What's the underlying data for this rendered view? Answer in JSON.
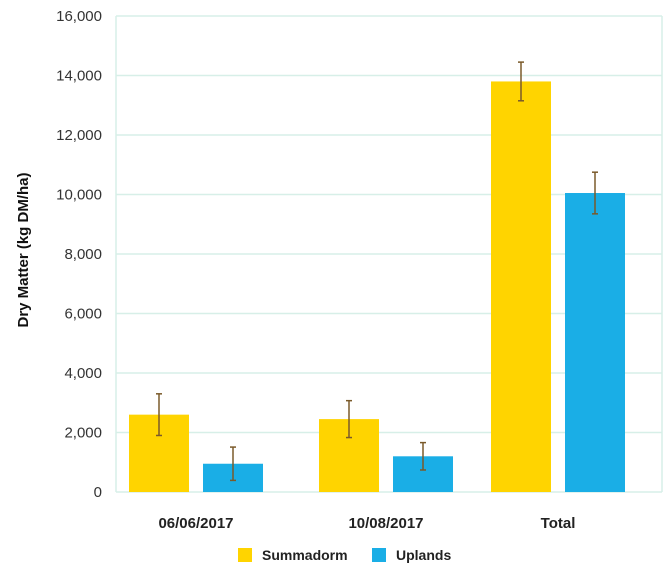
{
  "chart_data": {
    "type": "bar",
    "title": "",
    "xlabel": "",
    "ylabel": "Dry Matter (kg DM/ha)",
    "ylim": [
      0,
      16000
    ],
    "yticks": [
      0,
      2000,
      4000,
      6000,
      8000,
      10000,
      12000,
      14000,
      16000
    ],
    "ytick_labels": [
      "0",
      "2,000",
      "4,000",
      "6,000",
      "8,000",
      "10,000",
      "12,000",
      "14,000",
      "16,000"
    ],
    "categories": [
      "06/06/2017",
      "10/08/2017",
      "Total"
    ],
    "series": [
      {
        "name": "Summadorm",
        "color": "#ffd400",
        "values": [
          2600,
          2450,
          13800
        ],
        "error": [
          700,
          620,
          650
        ]
      },
      {
        "name": "Uplands",
        "color": "#1aaee6",
        "values": [
          950,
          1200,
          10050
        ],
        "error": [
          560,
          460,
          700
        ]
      }
    ],
    "grid": true,
    "grid_color": "#d7efe8",
    "legend_position": "bottom"
  }
}
